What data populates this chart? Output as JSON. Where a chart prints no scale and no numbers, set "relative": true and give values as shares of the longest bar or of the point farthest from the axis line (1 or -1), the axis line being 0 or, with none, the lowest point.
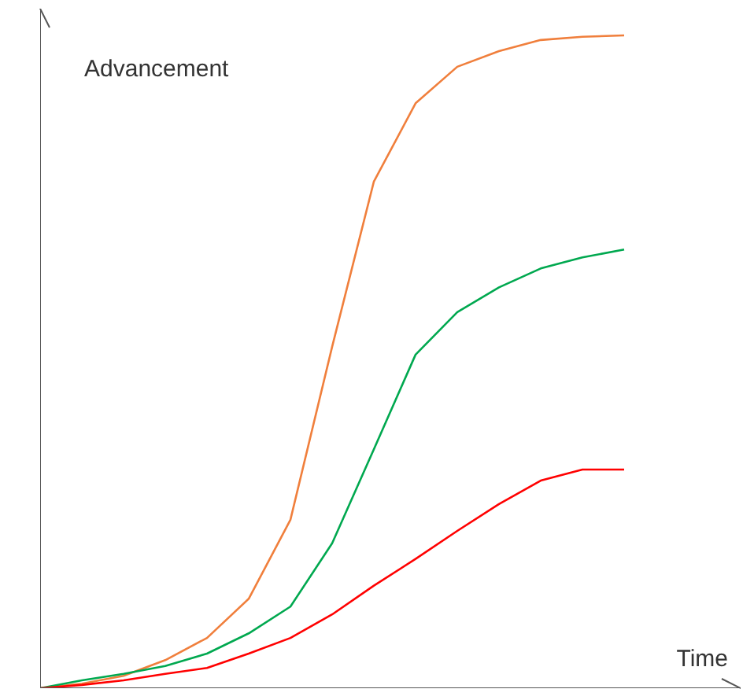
{
  "chart_data": {
    "type": "line",
    "relative": true,
    "ylabel": "Advancement",
    "xlabel": "Time",
    "marker": "none",
    "line_style": "solid",
    "categories": [
      null,
      null,
      null,
      null,
      null,
      null,
      null,
      null,
      null,
      null,
      null,
      null,
      null,
      null,
      null
    ],
    "series": [
      {
        "color": "#f07f3c",
        "values": [
          0,
          0.007,
          0.019,
          0.043,
          0.077,
          0.137,
          0.258,
          0.523,
          0.776,
          0.896,
          0.952,
          0.976,
          0.993,
          0.998,
          1.0
        ]
      },
      {
        "color": "#00a84f",
        "values": [
          0,
          0.012,
          0.022,
          0.034,
          0.053,
          0.084,
          0.125,
          0.222,
          0.366,
          0.511,
          0.576,
          0.614,
          0.643,
          0.66,
          0.672
        ]
      },
      {
        "color": "#ff0000",
        "values": [
          0,
          0.005,
          0.012,
          0.022,
          0.031,
          0.053,
          0.077,
          0.113,
          0.157,
          0.198,
          0.241,
          0.282,
          0.318,
          0.335,
          0.335
        ]
      }
    ]
  }
}
